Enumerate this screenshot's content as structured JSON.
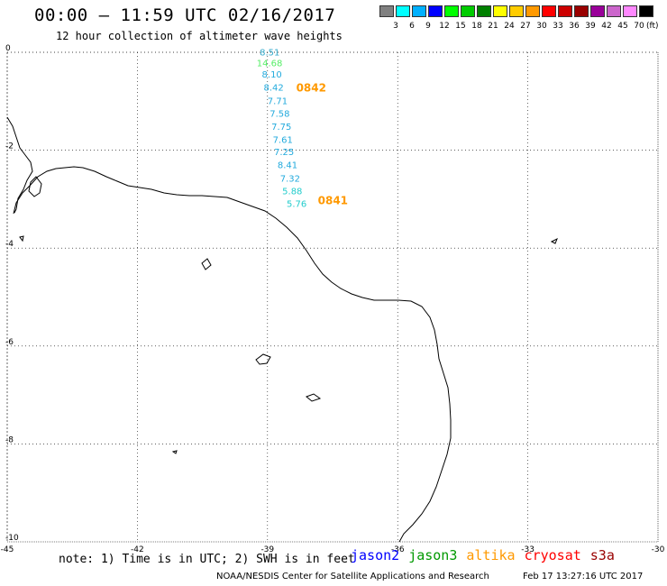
{
  "header": {
    "title": "00:00 – 11:59 UTC 02/16/2017",
    "subtitle": "12 hour collection of altimeter wave heights"
  },
  "legend": {
    "unit": "(ft)",
    "colors": [
      "#808080",
      "#00ffff",
      "#00b0ff",
      "#0000ff",
      "#00ff00",
      "#00cc00",
      "#008000",
      "#ffff00",
      "#ffcc00",
      "#ff9900",
      "#ff0000",
      "#cc0000",
      "#990000",
      "#990099",
      "#cc66cc",
      "#ff88ff",
      "#000000"
    ],
    "labels": [
      "3",
      "6",
      "9",
      "12",
      "15",
      "18",
      "21",
      "24",
      "27",
      "30",
      "33",
      "36",
      "39",
      "42",
      "45",
      "70"
    ]
  },
  "axes": {
    "x_ticks": [
      "-45",
      "-42",
      "-39",
      "-36",
      "-33",
      "-30"
    ],
    "y_ticks": [
      "0",
      "-2",
      "-4",
      "-6",
      "-8",
      "-10"
    ],
    "lon_range": [
      -45,
      -30
    ],
    "lat_range": [
      -10,
      0
    ]
  },
  "observations": [
    {
      "value": "8.51",
      "color": "#33aacc",
      "lon": -39.18,
      "lat": -0.06
    },
    {
      "value": "14.68",
      "color": "#55ee66",
      "lon": -39.25,
      "lat": -0.29
    },
    {
      "value": "8.10",
      "color": "#22aadd",
      "lon": -39.13,
      "lat": -0.52
    },
    {
      "value": "8.42",
      "color": "#22aadd",
      "lon": -39.09,
      "lat": -0.78
    },
    {
      "value": "7.71",
      "color": "#22aadd",
      "lon": -39.0,
      "lat": -1.06
    },
    {
      "value": "7.58",
      "color": "#22aadd",
      "lon": -38.95,
      "lat": -1.32
    },
    {
      "value": "7.75",
      "color": "#22aadd",
      "lon": -38.91,
      "lat": -1.58
    },
    {
      "value": "7.61",
      "color": "#22aadd",
      "lon": -38.88,
      "lat": -1.85
    },
    {
      "value": "7.25",
      "color": "#22aadd",
      "lon": -38.85,
      "lat": -2.1
    },
    {
      "value": "8.41",
      "color": "#22aadd",
      "lon": -38.77,
      "lat": -2.37
    },
    {
      "value": "7.32",
      "color": "#22aadd",
      "lon": -38.71,
      "lat": -2.64
    },
    {
      "value": "5.88",
      "color": "#22cccc",
      "lon": -38.66,
      "lat": -2.9
    },
    {
      "value": "5.76",
      "color": "#22cccc",
      "lon": -38.56,
      "lat": -3.16
    }
  ],
  "passes": [
    {
      "id": "0842",
      "lon": -38.34,
      "lat": -0.8
    },
    {
      "id": "0841",
      "lon": -37.84,
      "lat": -3.1
    }
  ],
  "footer": {
    "note": "note: 1) Time is in UTC; 2) SWH is in feet",
    "satellites": [
      {
        "name": "jason2",
        "color": "#0000ff"
      },
      {
        "name": "jason3",
        "color": "#009900"
      },
      {
        "name": "altika",
        "color": "#ff9900"
      },
      {
        "name": "cryosat",
        "color": "#ff0000"
      },
      {
        "name": "s3a",
        "color": "#990000"
      }
    ],
    "credit": "NOAA/NESDIS Center for Satellite Applications and Research",
    "timestamp": "Feb 17 13:27:16 UTC 2017"
  }
}
